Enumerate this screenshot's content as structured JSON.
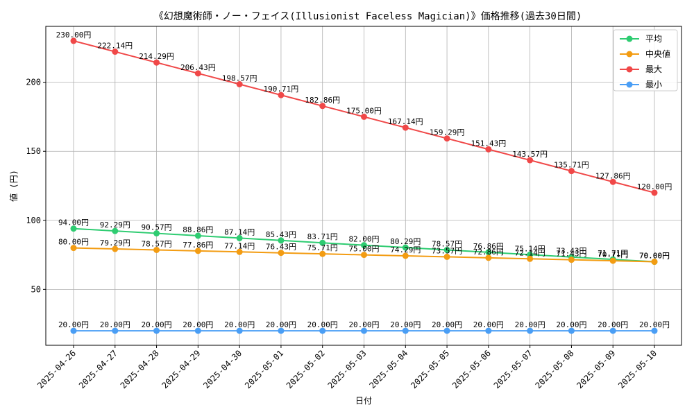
{
  "chart_data": {
    "type": "line",
    "title": "《幻想魔術師・ノー・フェイス(Illusionist Faceless Magician)》価格推移(過去30日間)",
    "xlabel": "日付",
    "ylabel": "値 (円)",
    "categories": [
      "2025-04-26",
      "2025-04-27",
      "2025-04-28",
      "2025-04-29",
      "2025-04-30",
      "2025-05-01",
      "2025-05-02",
      "2025-05-03",
      "2025-05-04",
      "2025-05-05",
      "2025-05-06",
      "2025-05-07",
      "2025-05-08",
      "2025-05-09",
      "2025-05-10"
    ],
    "yticks": [
      50,
      100,
      150,
      200
    ],
    "ylim": [
      9.5,
      240.5
    ],
    "grid": true,
    "legend_position": "top-right",
    "label_suffix": "円",
    "series": [
      {
        "name": "平均",
        "color": "#2ecc71",
        "values": [
          94.0,
          92.29,
          90.57,
          88.86,
          87.14,
          85.43,
          83.71,
          82.0,
          80.29,
          78.57,
          76.86,
          75.14,
          73.43,
          71.71,
          70.0
        ]
      },
      {
        "name": "中央値",
        "color": "#f39c12",
        "values": [
          80.0,
          79.29,
          78.57,
          77.86,
          77.14,
          76.43,
          75.71,
          75.0,
          74.29,
          73.57,
          72.86,
          72.14,
          71.43,
          70.71,
          70.0
        ]
      },
      {
        "name": "最大",
        "color": "#f04848",
        "values": [
          230.0,
          222.14,
          214.29,
          206.43,
          198.57,
          190.71,
          182.86,
          175.0,
          167.14,
          159.29,
          151.43,
          143.57,
          135.71,
          127.86,
          120.0
        ]
      },
      {
        "name": "最小",
        "color": "#4a9ef5",
        "values": [
          20.0,
          20.0,
          20.0,
          20.0,
          20.0,
          20.0,
          20.0,
          20.0,
          20.0,
          20.0,
          20.0,
          20.0,
          20.0,
          20.0,
          20.0
        ]
      }
    ]
  }
}
